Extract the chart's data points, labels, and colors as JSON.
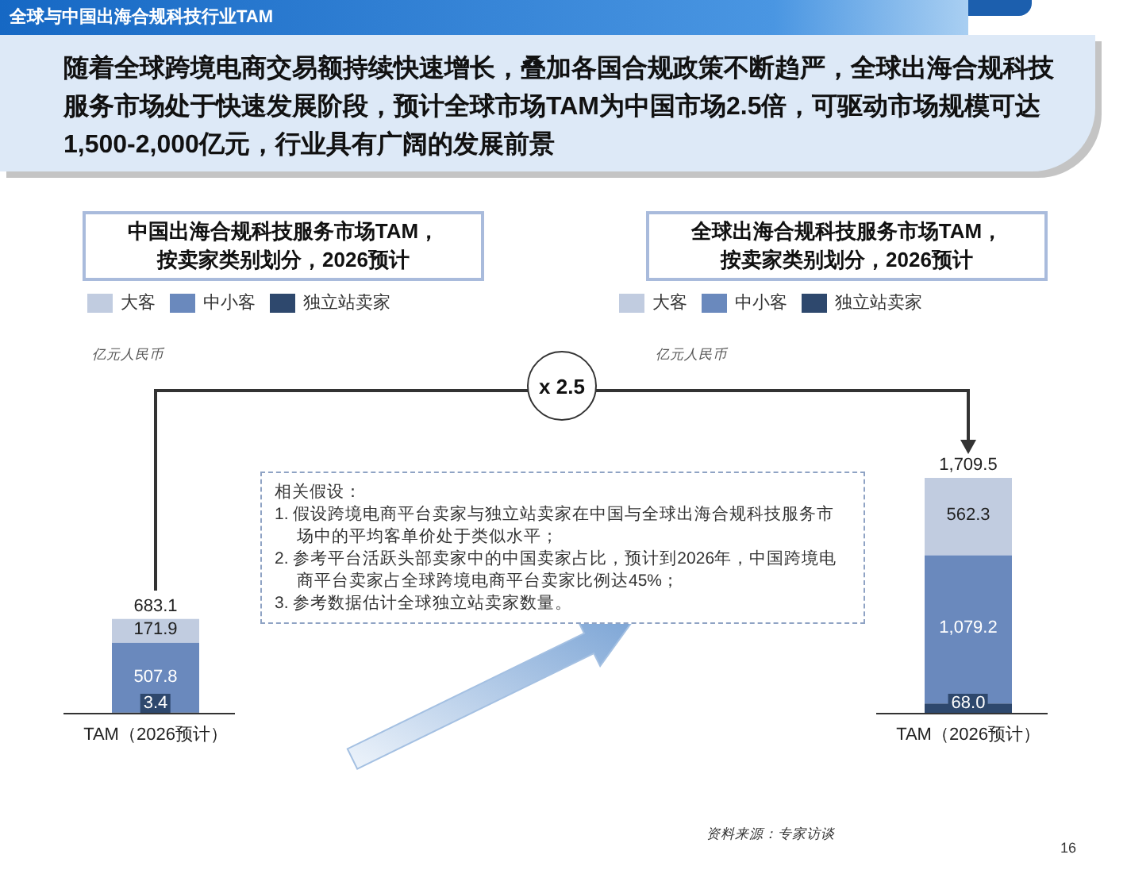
{
  "chart_data": [
    {
      "type": "other",
      "title": "全球与中国出海合规科技行业TAM",
      "subtitle": "随着全球跨境电商交易额持续快速增长，叠加各国合规政策不断趋严，全球出海合规科技服务市场处于快速发展阶段，预计全球市场TAM为中国市场2.5倍，可驱动市场规模可达1,500-2,000亿元，行业具有广阔的发展前景"
    },
    {
      "type": "bar",
      "title": "中国出海合规科技服务市场TAM，按卖家类别划分，2026预计",
      "annotations": [
        "亿元人民币"
      ],
      "categories": [
        "TAM（2026预计）"
      ],
      "stacked": true,
      "legend": "top right",
      "series": [
        {
          "name": "独立站卖家",
          "color": "#2e486d",
          "values": [
            3.4
          ],
          "value_labels": [
            "3.4"
          ]
        },
        {
          "name": "中小客",
          "color": "#6a89bd",
          "values": [
            507.8
          ],
          "value_labels": [
            "507.8"
          ]
        },
        {
          "name": "大客",
          "color": "#c1cce0",
          "values": [
            171.9
          ],
          "value_labels": [
            "171.9"
          ]
        }
      ],
      "totals": [
        "683.1"
      ]
    },
    {
      "type": "bar",
      "title": "全球出海合规科技服务市场TAM，按卖家类别划分，2026预计",
      "annotations": [
        "亿元人民币"
      ],
      "categories": [
        "TAM（2026预计）"
      ],
      "stacked": true,
      "legend": "top left",
      "series": [
        {
          "name": "独立站卖家",
          "color": "#2e486d",
          "values": [
            68.0
          ],
          "value_labels": [
            "68.0"
          ]
        },
        {
          "name": "中小客",
          "color": "#6a89bd",
          "values": [
            1079.2
          ],
          "value_labels": [
            "1,079.2"
          ]
        },
        {
          "name": "大客",
          "color": "#c1cce0",
          "values": [
            562.3
          ],
          "value_labels": [
            "562.3"
          ]
        }
      ],
      "totals": [
        "1,709.5"
      ]
    },
    {
      "type": "other",
      "annotations": [
        "x 2.5",
        "相关假设：",
        "1. 假设跨境电商平台卖家与独立站卖家在中国与全球出海合规科技服务市场中的平均客单价处于类似水平；",
        "2. 参考平台活跃头部卖家中的中国卖家占比，预计到2026年，中国跨境电商平台卖家占全球跨境电商平台卖家比例达45%；",
        "3. 参考数据估计全球独立站卖家数量。",
        "资料来源：专家访谈",
        "16"
      ]
    }
  ]
}
